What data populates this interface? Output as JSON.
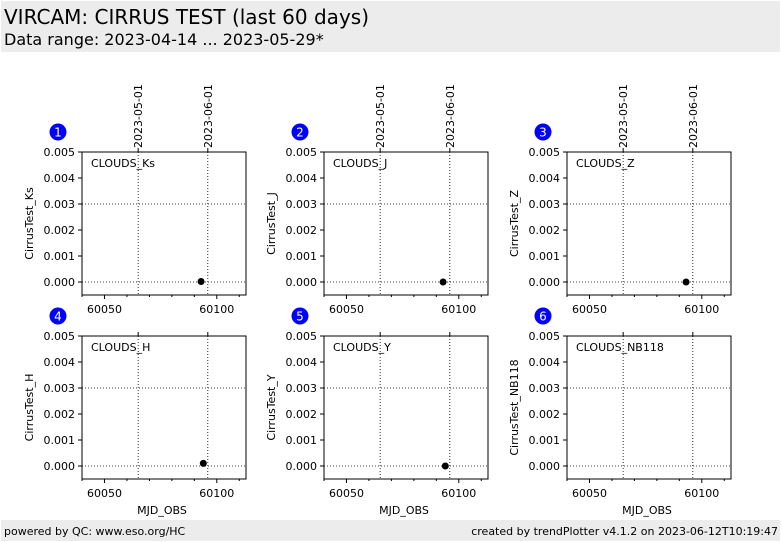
{
  "header": {
    "title": "VIRCAM: CIRRUS TEST (last 60 days)",
    "subtitle": "Data range: 2023-04-14 ... 2023-05-29*"
  },
  "footer": {
    "left": "powered by QC: www.eso.org/HC",
    "right": "created by trendPlotter v4.1.2 on 2023-06-12T10:19:47"
  },
  "colors": {
    "badge": "#0000ff",
    "marker": "#000000",
    "band": "#ececec"
  },
  "chart_data": [
    {
      "type": "scatter",
      "badge": "1",
      "label": "CLOUDS_Ks",
      "ylabel": "CirrusTest_Ks",
      "xlabel": "",
      "xlim": [
        60040,
        60113
      ],
      "ylim": [
        -0.0005,
        0.005
      ],
      "yticks": [
        "0.000",
        "0.001",
        "0.002",
        "0.003",
        "0.004",
        "0.005"
      ],
      "xticks": [
        "60050",
        "60100"
      ],
      "date_ticks": [
        {
          "mjd": 60065,
          "label": "2023-05-01"
        },
        {
          "mjd": 60096,
          "label": "2023-06-01"
        }
      ],
      "points": [
        {
          "x": 60093,
          "y": 2e-05
        }
      ]
    },
    {
      "type": "scatter",
      "badge": "2",
      "label": "CLOUDS_J",
      "ylabel": "CirrusTest_J",
      "xlabel": "",
      "xlim": [
        60040,
        60113
      ],
      "ylim": [
        -0.0005,
        0.005
      ],
      "yticks": [
        "0.000",
        "0.001",
        "0.002",
        "0.003",
        "0.004",
        "0.005"
      ],
      "xticks": [
        "60050",
        "60100"
      ],
      "date_ticks": [
        {
          "mjd": 60065,
          "label": "2023-05-01"
        },
        {
          "mjd": 60096,
          "label": "2023-06-01"
        }
      ],
      "points": [
        {
          "x": 60093,
          "y": 0.0
        }
      ]
    },
    {
      "type": "scatter",
      "badge": "3",
      "label": "CLOUDS_Z",
      "ylabel": "CirrusTest_Z",
      "xlabel": "",
      "xlim": [
        60040,
        60113
      ],
      "ylim": [
        -0.0005,
        0.005
      ],
      "yticks": [
        "0.000",
        "0.001",
        "0.002",
        "0.003",
        "0.004",
        "0.005"
      ],
      "xticks": [
        "60050",
        "60100"
      ],
      "date_ticks": [
        {
          "mjd": 60065,
          "label": "2023-05-01"
        },
        {
          "mjd": 60096,
          "label": "2023-06-01"
        }
      ],
      "points": [
        {
          "x": 60093,
          "y": 0.0
        }
      ]
    },
    {
      "type": "scatter",
      "badge": "4",
      "label": "CLOUDS_H",
      "ylabel": "CirrusTest_H",
      "xlabel": "MJD_OBS",
      "xlim": [
        60040,
        60113
      ],
      "ylim": [
        -0.0005,
        0.005
      ],
      "yticks": [
        "0.000",
        "0.001",
        "0.002",
        "0.003",
        "0.004",
        "0.005"
      ],
      "xticks": [
        "60050",
        "60100"
      ],
      "date_ticks": [
        {
          "mjd": 60065,
          "label": ""
        },
        {
          "mjd": 60096,
          "label": ""
        }
      ],
      "points": [
        {
          "x": 60094,
          "y": 0.0001
        }
      ]
    },
    {
      "type": "scatter",
      "badge": "5",
      "label": "CLOUDS_Y",
      "ylabel": "CirrusTest_Y",
      "xlabel": "MJD_OBS",
      "xlim": [
        60040,
        60113
      ],
      "ylim": [
        -0.0005,
        0.005
      ],
      "yticks": [
        "0.000",
        "0.001",
        "0.002",
        "0.003",
        "0.004",
        "0.005"
      ],
      "xticks": [
        "60050",
        "60100"
      ],
      "date_ticks": [
        {
          "mjd": 60065,
          "label": ""
        },
        {
          "mjd": 60096,
          "label": ""
        }
      ],
      "points": [
        {
          "x": 60094,
          "y": 0.0
        }
      ]
    },
    {
      "type": "scatter",
      "badge": "6",
      "label": "CLOUDS_NB118",
      "ylabel": "CirrusTest_NB118",
      "xlabel": "MJD_OBS",
      "xlim": [
        60040,
        60113
      ],
      "ylim": [
        -0.0005,
        0.005
      ],
      "yticks": [
        "0.000",
        "0.001",
        "0.002",
        "0.003",
        "0.004",
        "0.005"
      ],
      "xticks": [
        "60050",
        "60100"
      ],
      "date_ticks": [
        {
          "mjd": 60065,
          "label": ""
        },
        {
          "mjd": 60096,
          "label": ""
        }
      ],
      "points": []
    }
  ]
}
